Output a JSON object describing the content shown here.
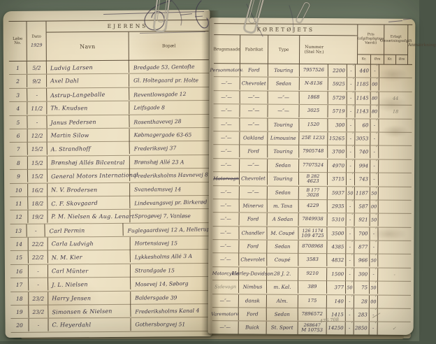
{
  "left_page": {
    "title": "EJERENS",
    "columns": {
      "no": "Løbe No.",
      "date": "Dato",
      "name": "Navn",
      "residence": "Bopæl"
    },
    "year_note": "1929",
    "rows": [
      {
        "no": "1",
        "date": "5/2",
        "name": "Ludvig Larsen",
        "residence": "Bredgade 53, Gentofte"
      },
      {
        "no": "2",
        "date": "9/2",
        "name": "Axel Dahl",
        "residence": "Gl. Holtegaard pr. Holte"
      },
      {
        "no": "3",
        "date": "-",
        "name": "Astrup-Langeballe",
        "residence": "Reventlowsgade 12"
      },
      {
        "no": "4",
        "date": "11/2",
        "name": "Th. Knudsen",
        "residence": "Leifsgade 8"
      },
      {
        "no": "5",
        "date": "-",
        "name": "Janus Pedersen",
        "residence": "Rosenthavevej 28"
      },
      {
        "no": "6",
        "date": "12/2",
        "name": "Martin Silow",
        "residence": "Købmagergade 63-65"
      },
      {
        "no": "7",
        "date": "15/2",
        "name": "A. Strandhoff",
        "residence": "Frederiksvej 37"
      },
      {
        "no": "8",
        "date": "15/2",
        "name": "Brønshøj Allés Bilcentral",
        "residence": "Brønshøj Allé 23 A"
      },
      {
        "no": "9",
        "date": "15/2",
        "name": "General Motors International",
        "residence": "Frederiksholms Havnevej 8"
      },
      {
        "no": "10",
        "date": "16/2",
        "name": "N. V. Brodersen",
        "residence": "Svanedamsvej 14"
      },
      {
        "no": "11",
        "date": "18/2",
        "name": "C. F. Skovgaard",
        "residence": "Lindevangsvej pr. Birkerød"
      },
      {
        "no": "12",
        "date": "19/2",
        "name": "P. M. Nielsen & Aug. Lenart",
        "residence": "Sprogøvej 7, Vanløse"
      },
      {
        "no": "13",
        "date": "-",
        "name": "Carl Permin",
        "residence": "Fuglegaardsvej 12 A, Hellerup"
      },
      {
        "no": "14",
        "date": "22/2",
        "name": "Carla Ludvigh",
        "residence": "Hortensiavej 15"
      },
      {
        "no": "15",
        "date": "22/2",
        "name": "N. M. Kier",
        "residence": "Lykkesholms Allé 3 A"
      },
      {
        "no": "16",
        "date": "-",
        "name": "Carl Münter",
        "residence": "Strandgade 15"
      },
      {
        "no": "17",
        "date": "-",
        "name": "J. L. Nielsen",
        "residence": "Mosevej 14, Søborg"
      },
      {
        "no": "18",
        "date": "23/2",
        "name": "Harry Jensen",
        "residence": "Baldersgade 39"
      },
      {
        "no": "19",
        "date": "23/2",
        "name": "Simonsen & Nielsen",
        "residence": "Frederiksholms Kanal 4"
      },
      {
        "no": "20",
        "date": "-",
        "name": "C. Heyerdahl",
        "residence": "Gothersborgvej 51"
      }
    ]
  },
  "right_page": {
    "title": "KØRETØJETS",
    "columns": {
      "usage": "Brugsmaade",
      "make": "Fabrikat",
      "type": "Type",
      "number": "Nummer (Stel Nr.)",
      "price": "Pris (afgiftspligtige Værdi)",
      "tax": "Erlagt Omsætningsafgift",
      "remark": "Anmærkning"
    },
    "currency_headers": {
      "kr": "Kr.",
      "ore": "Øre"
    },
    "pencil_tick": "✓",
    "pencil_total": "476 708",
    "rows": [
      {
        "usage": "Personmotorv.",
        "make": "Ford",
        "type": "Touring",
        "number": "7957526",
        "price_kr": "2200",
        "price_ore": "-",
        "tax_kr": "440",
        "tax_ore": "-",
        "remark": ""
      },
      {
        "usage": "—″—",
        "make": "Chevrolet",
        "type": "Sedan",
        "number": "N-8136",
        "price_kr": "5925",
        "price_ore": "-",
        "tax_kr": "1185",
        "tax_ore": "00",
        "remark": ""
      },
      {
        "usage": "—″—",
        "make": "—″—",
        "type": "—″—",
        "number": "1868",
        "price_kr": "5729",
        "price_ore": "-",
        "tax_kr": "1145",
        "tax_ore": "80",
        "remark": "44"
      },
      {
        "usage": "—″—",
        "make": "—″—",
        "type": "—″—",
        "number": "3025",
        "price_kr": "5719",
        "price_ore": "-",
        "tax_kr": "1143",
        "tax_ore": "80",
        "remark": "18"
      },
      {
        "usage": "—″—",
        "make": "—″—",
        "type": "Touring",
        "number": "1520",
        "price_kr": "300",
        "price_ore": "-",
        "tax_kr": "60",
        "tax_ore": "-",
        "remark": ""
      },
      {
        "usage": "—″—",
        "make": "Oakland",
        "type": "Limousine",
        "number": "25E 1233",
        "price_kr": "15265",
        "price_ore": "-",
        "tax_kr": "3053",
        "tax_ore": "-",
        "remark": ""
      },
      {
        "usage": "—″—",
        "make": "Ford",
        "type": "Touring",
        "number": "7905748",
        "price_kr": "3700",
        "price_ore": "-",
        "tax_kr": "740",
        "tax_ore": "-",
        "remark": ""
      },
      {
        "usage": "—″—",
        "make": "—″—",
        "type": "Sedan",
        "number": "7707524",
        "price_kr": "4970",
        "price_ore": "-",
        "tax_kr": "994",
        "tax_ore": "-",
        "remark": ""
      },
      {
        "usage": "Motorvogn",
        "usage_struck": true,
        "make": "Chevrolet",
        "type": "Touring",
        "number_top": "B 282",
        "number": "4623",
        "price_kr": "3715",
        "price_ore": "-",
        "tax_kr": "743",
        "tax_ore": "-",
        "remark": ""
      },
      {
        "usage": "—″—",
        "make": "—″—",
        "type": "Sedan",
        "number_top": "B 177",
        "number": "3028",
        "price_kr": "5937",
        "price_ore": "50",
        "tax_kr": "1187",
        "tax_ore": "50",
        "remark": ""
      },
      {
        "usage": "—″—",
        "make": "Minerva",
        "type": "m. Taxa",
        "number": "4229",
        "price_kr": "2935",
        "price_ore": "-",
        "tax_kr": "587",
        "tax_ore": "00",
        "remark": ""
      },
      {
        "usage": "—″—",
        "make": "Ford",
        "type": "A Sedan",
        "number": "7849938",
        "price_kr": "5310",
        "price_ore": "-",
        "tax_kr": "921",
        "tax_ore": "50",
        "remark": ""
      },
      {
        "usage": "—″—",
        "make": "Chandler",
        "type": "M. Coupé",
        "number_top": "126 1174",
        "number": "109 4725",
        "price_kr": "3500",
        "price_ore": "-",
        "tax_kr": "700",
        "tax_ore": "-",
        "remark": ""
      },
      {
        "usage": "—″—",
        "make": "Ford",
        "type": "Sedan",
        "number": "8708968",
        "price_kr": "4385",
        "price_ore": "-",
        "tax_kr": "877",
        "tax_ore": "-",
        "remark": ""
      },
      {
        "usage": "—″—",
        "make": "Chevrolet",
        "type": "Coupé",
        "number": "3583",
        "price_kr": "4832",
        "price_ore": "-",
        "tax_kr": "966",
        "tax_ore": "50",
        "remark": ""
      },
      {
        "usage": "Motorcykle",
        "make": "Harley-Davidson",
        "type": "28 J. 2.",
        "number": "9210",
        "price_kr": "1500",
        "price_ore": "-",
        "tax_kr": "300",
        "tax_ore": "-",
        "remark": "-"
      },
      {
        "usage": "Sidevogn",
        "usage_pencil": true,
        "make": "Nimbus",
        "type": "m. Kal.",
        "number": "389",
        "price_kr": "377",
        "price_ore": "50",
        "tax_kr": "75",
        "tax_ore": "50",
        "remark": ""
      },
      {
        "usage": "—″—",
        "make": "dansk",
        "type": "Alm.",
        "number": "175",
        "price_kr": "140",
        "price_ore": "-",
        "tax_kr": "28",
        "tax_ore": "00",
        "remark": ""
      },
      {
        "usage": "Varemotorv.",
        "make": "Ford",
        "type": "Sedan",
        "number": "7896572",
        "price_kr": "1415",
        "price_ore": "-",
        "tax_kr": "283",
        "tax_ore": "-",
        "remark": ""
      },
      {
        "usage": "—″—",
        "make": "Buick",
        "type": "St. Sport",
        "number_top": "268647",
        "number": "M 10753",
        "price_kr": "14250",
        "price_ore": "-",
        "tax_kr": "2850",
        "tax_ore": "-",
        "remark": "✓"
      }
    ]
  }
}
